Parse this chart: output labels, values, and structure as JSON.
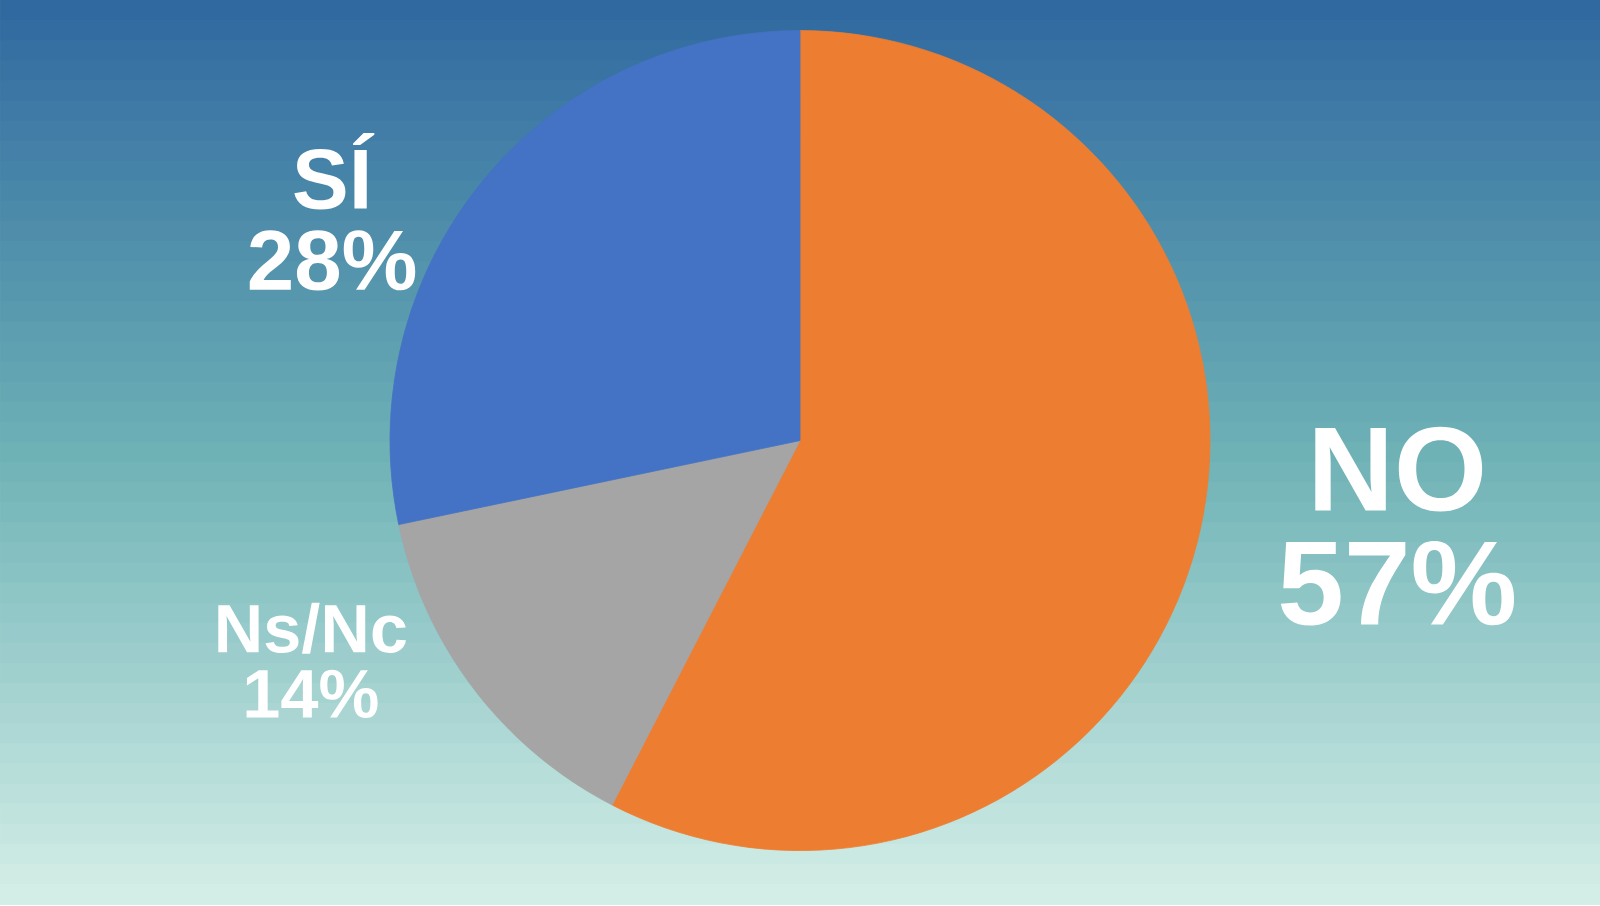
{
  "chart_data": {
    "type": "pie",
    "categories": [
      "NO",
      "Ns/Nc",
      "SÍ"
    ],
    "values": [
      57,
      14,
      28
    ],
    "value_labels": [
      "57%",
      "14%",
      "28%"
    ],
    "colors": [
      "#ed7d31",
      "#a5a5a5",
      "#4472c4"
    ]
  }
}
